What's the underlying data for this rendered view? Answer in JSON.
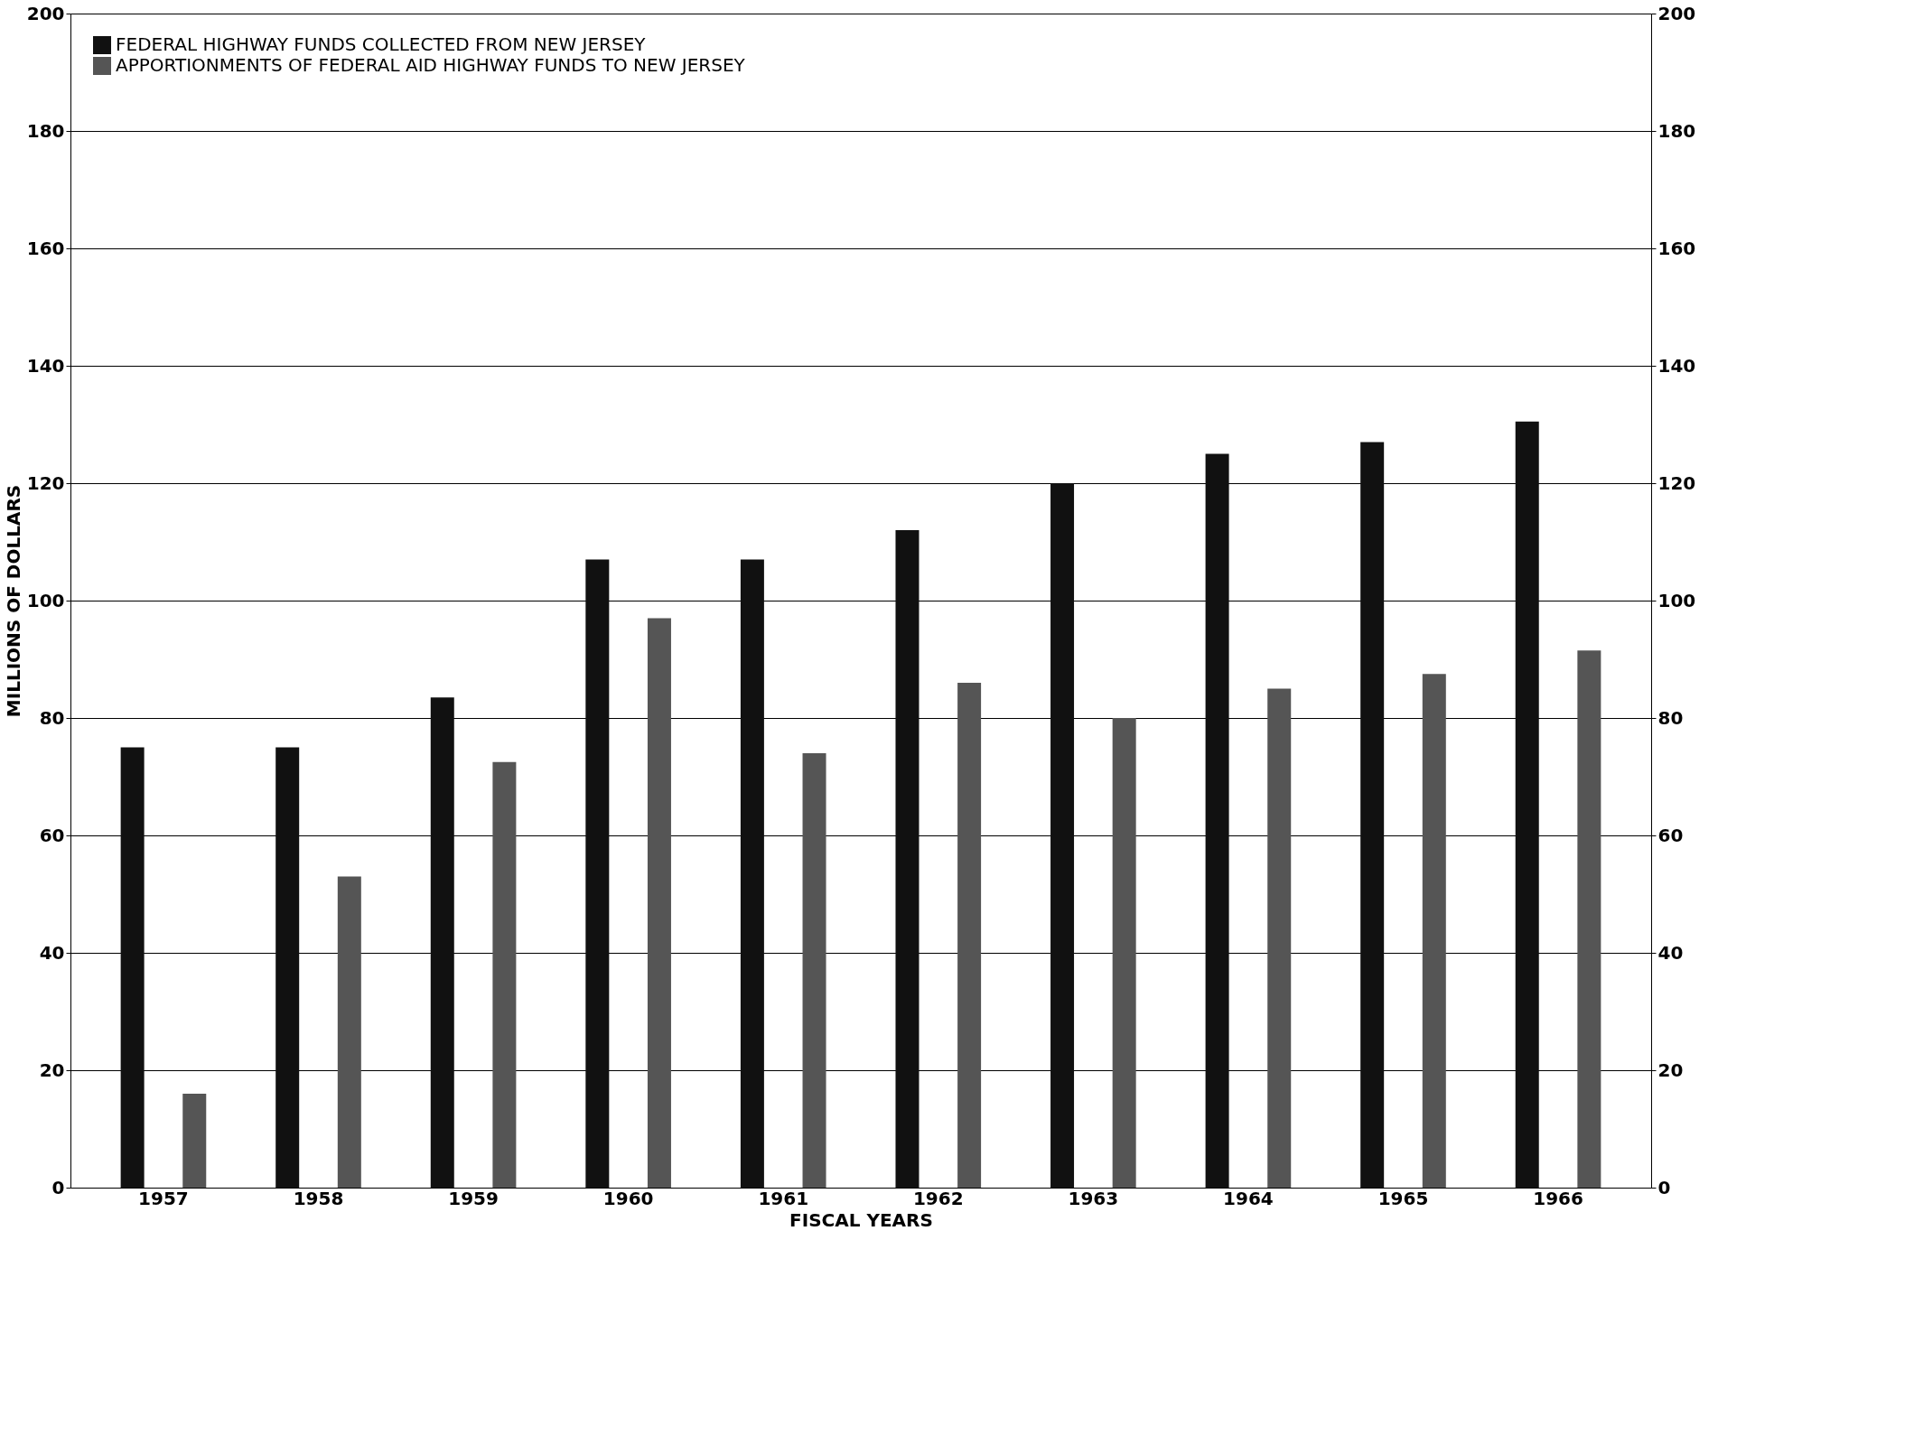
{
  "chart_data": {
    "type": "bar",
    "xlabel": "FISCAL YEARS",
    "ylabel": "MILLIONS OF DOLLARS",
    "categories": [
      "1957",
      "1958",
      "1959",
      "1960",
      "1961",
      "1962",
      "1963",
      "1964",
      "1965",
      "1966"
    ],
    "series": [
      {
        "name": "FEDERAL HIGHWAY FUNDS COLLECTED FROM NEW JERSEY",
        "color": "#111111",
        "values": [
          75,
          75,
          83.5,
          107,
          107,
          112,
          120,
          125,
          127,
          130.5
        ]
      },
      {
        "name": "APPORTIONMENTS OF FEDERAL AID HIGHWAY FUNDS TO NEW JERSEY",
        "color": "#555555",
        "values": [
          16,
          53,
          72.5,
          97,
          74,
          86,
          80,
          85,
          87.5,
          91.5
        ]
      }
    ],
    "ylim": [
      0,
      200
    ],
    "yticks": [
      0,
      20,
      40,
      60,
      80,
      100,
      120,
      140,
      160,
      180,
      200
    ],
    "y2lim": [
      0,
      200
    ],
    "y2ticks": [
      0,
      20,
      40,
      60,
      80,
      100,
      120,
      140,
      160,
      180,
      200
    ],
    "grid": "y",
    "legend": "top left"
  }
}
